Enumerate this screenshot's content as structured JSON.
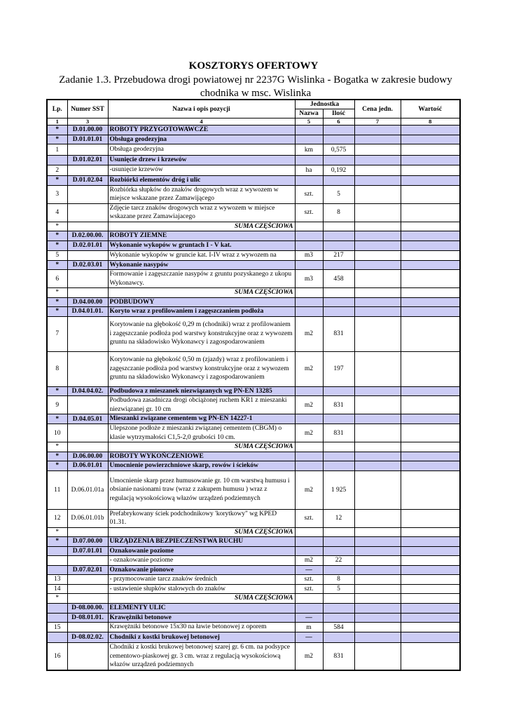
{
  "document": {
    "title": "KOSZTORYS OFERTOWY",
    "subtitle": "Zadanie 1.3. Przebudowa drogi powiatowej nr 2237G Wislinka - Bogatka w zakresie budowy chodnika w msc. Wislinka"
  },
  "colors": {
    "section_fill": "#ccccf5"
  },
  "table": {
    "headers": {
      "lp": "Lp.",
      "sst": "Numer SST",
      "name": "Nazwa i opis pozycji",
      "unit_group": "Jednostka",
      "unit": "Nazwa",
      "qty": "Ilość",
      "price": "Cena jedn.",
      "value": "Wartość"
    },
    "column_numbers": [
      "1",
      "3",
      "4",
      "5",
      "6",
      "7",
      "8"
    ],
    "rows": [
      {
        "type": "section",
        "lp": "*",
        "sst": "D.01.00.00",
        "name": "ROBOTY PRZYGOTOWAWCZE",
        "unit": "",
        "qty": ""
      },
      {
        "type": "section",
        "lp": "*",
        "sst": "D.01.01.01",
        "name": "Obsługa geodezyjna",
        "unit": "",
        "qty": ""
      },
      {
        "type": "item",
        "lp": "1",
        "sst": "",
        "name": "Obsługa geodezyjna",
        "unit": "km",
        "qty": "0,575"
      },
      {
        "type": "section",
        "lp": "",
        "sst": "D.01.02.01",
        "name": "Usunięcie drzew i krzewów",
        "unit": "",
        "qty": ""
      },
      {
        "type": "item",
        "lp": "2",
        "sst": "",
        "name": "-usunięcie krzewów",
        "unit": "ha",
        "qty": "0,192"
      },
      {
        "type": "section",
        "lp": "*",
        "sst": "D.01.02.04",
        "name": "Rozbiórki elementów dróg i ulic",
        "unit": "",
        "qty": ""
      },
      {
        "type": "item",
        "lp": "3",
        "sst": "",
        "name": "Rozbiórka słupków do znaków drogowych wraz z wywozem w miejsce wskazane przez Zamawijącego",
        "unit": "szt.",
        "qty": "5"
      },
      {
        "type": "item",
        "lp": "4",
        "sst": "",
        "name": "Zdjęcie tarcz znaków drogowych wraz z wywozem w miejsce wskazane przez Zamawiajacego",
        "unit": "szt.",
        "qty": "8"
      },
      {
        "type": "sum",
        "lp": "*",
        "sst": "",
        "name": "SUMA CZĘŚCIOWA",
        "unit": "",
        "qty": ""
      },
      {
        "type": "section",
        "lp": "*",
        "sst": "D.02.00.00.",
        "name": "ROBOTY ZIEMNE",
        "unit": "",
        "qty": ""
      },
      {
        "type": "section",
        "lp": "*",
        "sst": "D.02.01.01",
        "name": "Wykonanie wykopów w gruntach I - V kat.",
        "unit": "",
        "qty": ""
      },
      {
        "type": "item",
        "lp": "5",
        "sst": "",
        "name": "Wykonanie wykopów w gruncie kat. I-IV wraz z wywozem na",
        "unit": "m3",
        "qty": "217"
      },
      {
        "type": "section",
        "lp": "*",
        "sst": "D.02.03.01",
        "name": "Wykonanie nasypów",
        "unit": "",
        "qty": ""
      },
      {
        "type": "item",
        "lp": "6",
        "sst": "",
        "name": "Formowanie i zagęszczanie nasypów z gruntu pozyskanego z ukopu Wykonawcy.",
        "unit": "m3",
        "qty": "458"
      },
      {
        "type": "sum",
        "lp": "*",
        "sst": "",
        "name": "SUMA CZĘŚCIOWA",
        "unit": "",
        "qty": ""
      },
      {
        "type": "section",
        "lp": "*",
        "sst": "D.04.00.00",
        "name": "PODBUDOWY",
        "unit": "",
        "qty": ""
      },
      {
        "type": "section",
        "lp": "*",
        "sst": "D.04.01.01.",
        "name": "Koryto wraz z profilowaniem i zagęszczaniem podłoża",
        "unit": "",
        "qty": ""
      },
      {
        "type": "item",
        "lp": "7",
        "sst": "",
        "name": "Korytowanie  na głębokość 0,29 m (chodniki) wraz z profilowaniem i zagęszczanie podłoża pod warstwy konstrukcyjne oraz z wywozem gruntu na składowisko Wykonawcy i zagospodarowaniem",
        "unit": "m2",
        "qty": "831"
      },
      {
        "type": "item",
        "lp": "8",
        "sst": "",
        "name": "Korytowanie  na głębokość 0,50 m (zjazdy) wraz z profilowaniem i zagęszczanie podłoża pod warstwy konstrukcyjne oraz z wywozem gruntu na składowisko Wykonawcy i zagospodarowaniem",
        "unit": "m2",
        "qty": "197"
      },
      {
        "type": "section",
        "lp": "*",
        "sst": "D.04.04.02.",
        "name": "Podbudowa z mieszanek niezwiązanych wg PN-EN 13285",
        "unit": "",
        "qty": ""
      },
      {
        "type": "item",
        "lp": "9",
        "sst": "",
        "name": "Podbudowa zasadnicza drogi obciążonej ruchem KR1 z mieszanki niezwiązanej gr. 10 cm",
        "unit": "m2",
        "qty": "831"
      },
      {
        "type": "section",
        "lp": "*",
        "sst": "D.04.05.01",
        "name": "Mieszanki związane cementem wg PN-EN 14227-1",
        "unit": "",
        "qty": ""
      },
      {
        "type": "item",
        "lp": "10",
        "sst": "",
        "name": "Ulepszone podłoże z mieszanki związanej cementem (CBGM) o klasie wytrzymałości C1,5-2,0 grubości 10 cm.",
        "unit": "m2",
        "qty": "831"
      },
      {
        "type": "sum",
        "lp": "*",
        "sst": "",
        "name": "SUMA CZĘŚCIOWA",
        "unit": "",
        "qty": ""
      },
      {
        "type": "section",
        "lp": "*",
        "sst": "D.06.00.00",
        "name": "ROBOTY WYKOŃCZENIOWE",
        "unit": "",
        "qty": ""
      },
      {
        "type": "section",
        "lp": "*",
        "sst": "D.06.01.01",
        "name": "Umocnienie powierzchniowe skarp, rowów i ścieków",
        "unit": "",
        "qty": ""
      },
      {
        "type": "item",
        "lp": "11",
        "sst": "D.06.01.01a",
        "name": "Umocnienie skarp przez humusowanie gr. 10 cm warstwą humusu i obsianie nasionami traw (wraz z zakupem humusu ) wraz z regulacją wysokościową włazów urządzeń podziemnych",
        "unit": "m2",
        "qty": "1 925"
      },
      {
        "type": "item",
        "lp": "12",
        "sst": "D.06.01.01b",
        "name": "Prefabrykowany ściek podchodnikowy 'korytkowy\" wg KPED 01.31.",
        "unit": "szt.",
        "qty": "12"
      },
      {
        "type": "sum",
        "lp": "*",
        "sst": "",
        "name": "SUMA CZĘŚCIOWA",
        "unit": "",
        "qty": ""
      },
      {
        "type": "section",
        "lp": "*",
        "sst": "D.07.00.00",
        "name": "URZĄDZENIA BEZPIECZEŃSTWA RUCHU",
        "unit": "",
        "qty": ""
      },
      {
        "type": "section",
        "lp": "",
        "sst": "D.07.01.01",
        "name": "Oznakowanie poziome",
        "unit": "",
        "qty": ""
      },
      {
        "type": "item",
        "lp": "",
        "sst": "",
        "name": "- oznakowanie poziome",
        "unit": "m2",
        "qty": "22"
      },
      {
        "type": "section",
        "lp": "",
        "sst": "D.07.02.01",
        "name": "Oznakowanie pionowe",
        "unit": "—",
        "qty": ""
      },
      {
        "type": "item",
        "lp": "13",
        "sst": "",
        "name": "- przymocowanie tarcz znaków średnich",
        "unit": "szt.",
        "qty": "8"
      },
      {
        "type": "item",
        "lp": "14",
        "sst": "",
        "name": "- ustawienie słupków stalowych do znaków",
        "unit": "szt.",
        "qty": "5"
      },
      {
        "type": "sum",
        "lp": "*",
        "sst": "",
        "name": "SUMA CZĘŚCIOWA",
        "unit": "",
        "qty": ""
      },
      {
        "type": "section",
        "lp": "",
        "sst": "D-08.00.00.",
        "name": "ELEMENTY ULIC",
        "unit": "",
        "qty": ""
      },
      {
        "type": "section",
        "lp": "",
        "sst": "D-08.01.01.",
        "name": "Krawężniki betonowe",
        "unit": "—",
        "qty": ""
      },
      {
        "type": "item",
        "lp": "15",
        "sst": "",
        "name": "Krawężniki betonowe 15x30 na ławie betonowej z oporem",
        "unit": "m",
        "qty": "584"
      },
      {
        "type": "section",
        "lp": "",
        "sst": "D-08.02.02.",
        "name": "Chodniki z kostki brukowej betonowej",
        "unit": "—",
        "qty": ""
      },
      {
        "type": "item",
        "lp": "16",
        "sst": "",
        "name": "Chodniki z kostki brukowej betonowej szarej  gr. 6 cm. na podsypce cementowo-piaskowej gr. 3 cm. wraz z regulacją wysokościową włazów urządzeń podziemnych",
        "unit": "m2",
        "qty": "831"
      }
    ]
  }
}
